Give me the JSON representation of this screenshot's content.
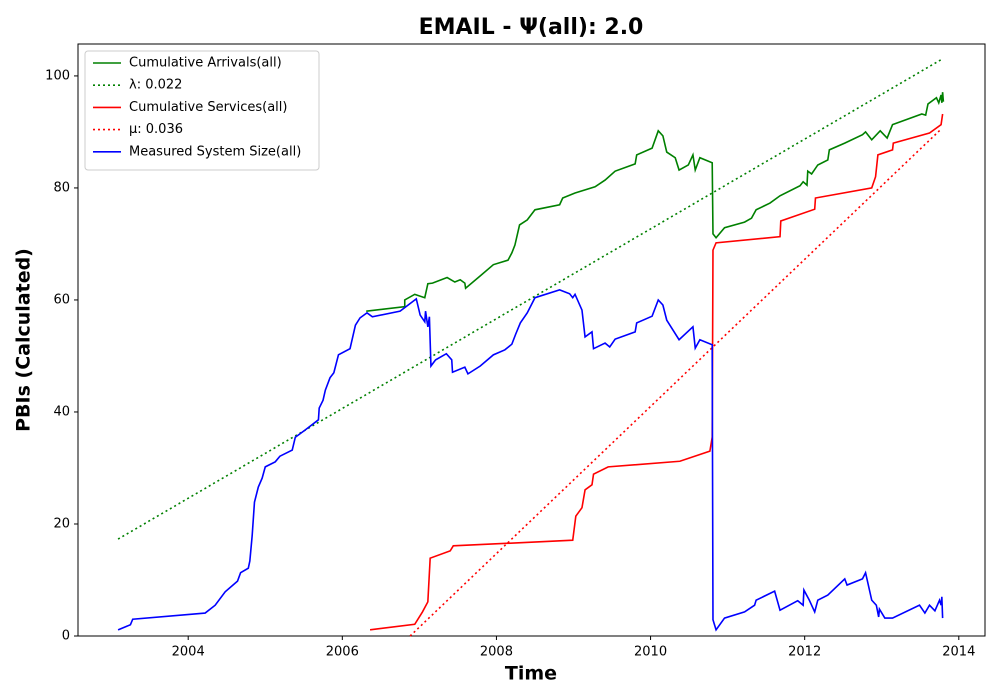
{
  "chart_data": {
    "type": "line",
    "title": "EMAIL -  Ψ(all): 2.0",
    "xlabel": "Time",
    "ylabel": "PBIs (Calculated)",
    "xlim": [
      2002.57,
      2014.34
    ],
    "ylim": [
      0,
      105.7
    ],
    "xticks": [
      2004,
      2006,
      2008,
      2010,
      2012,
      2014
    ],
    "yticks": [
      0,
      20,
      40,
      60,
      80,
      100
    ],
    "legend": "upper left",
    "grid": false,
    "series": [
      {
        "name": "Cumulative Arrivals(all)",
        "color": "#008000",
        "dash": "solid",
        "x": [
          2006.31,
          2006.81,
          2006.81,
          2006.94,
          2007.07,
          2007.11,
          2007.17,
          2007.36,
          2007.46,
          2007.53,
          2007.59,
          2007.6,
          2007.79,
          2007.96,
          2008.15,
          2008.2,
          2008.24,
          2008.3,
          2008.4,
          2008.5,
          2008.82,
          2008.86,
          2009.02,
          2009.28,
          2009.41,
          2009.54,
          2009.8,
          2009.82,
          2010.02,
          2010.1,
          2010.16,
          2010.21,
          2010.32,
          2010.37,
          2010.49,
          2010.55,
          2010.58,
          2010.64,
          2010.8,
          2010.81,
          2010.85,
          2010.96,
          2011.22,
          2011.31,
          2011.37,
          2011.55,
          2011.68,
          2011.94,
          2011.98,
          2012.03,
          2012.04,
          2012.09,
          2012.17,
          2012.3,
          2012.32,
          2012.52,
          2012.75,
          2012.79,
          2012.87,
          2012.98,
          2013.07,
          2013.14,
          2013.52,
          2013.57,
          2013.6,
          2013.71,
          2013.74,
          2013.77,
          2013.78,
          2013.79,
          2013.8
        ],
        "values": [
          58,
          58.8,
          60,
          61,
          60.4,
          62.9,
          63,
          64,
          63.2,
          63.6,
          63,
          62.1,
          64.3,
          66.3,
          67.1,
          68.4,
          69.8,
          73.4,
          74.3,
          76.1,
          77,
          78.2,
          79.1,
          80.2,
          81.4,
          83,
          84.3,
          85.9,
          87.1,
          90.2,
          89.3,
          86.4,
          85.4,
          83.2,
          84.1,
          85.9,
          83.2,
          85.4,
          84.5,
          71.8,
          71.1,
          72.9,
          73.9,
          74.6,
          76.1,
          77.3,
          78.6,
          80.4,
          81.1,
          80.5,
          83,
          82.5,
          84.1,
          85,
          86.8,
          88,
          89.5,
          90,
          88.6,
          90.2,
          88.9,
          91.3,
          93.2,
          93,
          95,
          96.1,
          95.2,
          96.6,
          95.2,
          97.1,
          95.4
        ]
      },
      {
        "name": "λ: 0.022",
        "color": "#008000",
        "dash": "dotted",
        "x": [
          2003.09,
          2013.77
        ],
        "values": [
          17.3,
          102.9
        ]
      },
      {
        "name": "Cumulative Services(all)",
        "color": "#ff0000",
        "dash": "solid",
        "x": [
          2006.36,
          2006.94,
          2007.04,
          2007.11,
          2007.14,
          2007.4,
          2007.44,
          2008.99,
          2009.03,
          2009.11,
          2009.15,
          2009.24,
          2009.26,
          2009.45,
          2010.38,
          2010.77,
          2010.8,
          2010.81,
          2010.85,
          2011.68,
          2011.69,
          2012.13,
          2012.14,
          2012.87,
          2012.92,
          2012.95,
          2013.14,
          2013.15,
          2013.62,
          2013.77,
          2013.79
        ],
        "values": [
          1.1,
          2.1,
          4.3,
          6.1,
          13.9,
          15.2,
          16.1,
          17.1,
          21.4,
          22.9,
          26.1,
          27,
          28.9,
          30.2,
          31.2,
          33,
          35.5,
          68.9,
          70.2,
          71.3,
          74.1,
          76.2,
          78.2,
          80,
          82,
          85.9,
          86.8,
          88,
          89.8,
          91.3,
          93.2
        ]
      },
      {
        "name": "μ: 0.036",
        "color": "#ff0000",
        "dash": "dotted",
        "x": [
          2006.88,
          2013.77
        ],
        "values": [
          0,
          90.5
        ]
      },
      {
        "name": "Measured System Size(all)",
        "color": "#0000ff",
        "dash": "solid",
        "x": [
          2003.09,
          2003.25,
          2003.28,
          2004.22,
          2004.35,
          2004.48,
          2004.64,
          2004.68,
          2004.78,
          2004.8,
          2004.83,
          2004.86,
          2004.91,
          2004.96,
          2005,
          2005.13,
          2005.19,
          2005.35,
          2005.39,
          2005.52,
          2005.69,
          2005.7,
          2005.75,
          2005.78,
          2005.84,
          2005.89,
          2005.95,
          2006.1,
          2006.17,
          2006.23,
          2006.32,
          2006.39,
          2006.75,
          2006.96,
          2007.01,
          2007.07,
          2007.08,
          2007.11,
          2007.13,
          2007.15,
          2007.21,
          2007.35,
          2007.42,
          2007.43,
          2007.59,
          2007.63,
          2007.79,
          2007.96,
          2008.11,
          2008.2,
          2008.25,
          2008.31,
          2008.4,
          2008.5,
          2008.82,
          2008.95,
          2008.99,
          2009.02,
          2009.11,
          2009.15,
          2009.24,
          2009.26,
          2009.41,
          2009.47,
          2009.54,
          2009.8,
          2009.82,
          2010.02,
          2010.1,
          2010.16,
          2010.21,
          2010.37,
          2010.55,
          2010.58,
          2010.64,
          2010.8,
          2010.8,
          2010.81,
          2010.85,
          2010.96,
          2011.22,
          2011.35,
          2011.37,
          2011.61,
          2011.68,
          2011.91,
          2011.98,
          2011.99,
          2012.06,
          2012.13,
          2012.17,
          2012.3,
          2012.52,
          2012.55,
          2012.75,
          2012.79,
          2012.87,
          2012.93,
          2012.96,
          2012.97,
          2013.04,
          2013.14,
          2013.49,
          2013.56,
          2013.62,
          2013.69,
          2013.75,
          2013.77,
          2013.78,
          2013.79
        ],
        "values": [
          1.1,
          2,
          3,
          4.1,
          5.5,
          7.9,
          9.8,
          11.3,
          12.1,
          13.4,
          17.9,
          23.9,
          26.6,
          28.2,
          30.2,
          31.1,
          32.1,
          33.2,
          35.5,
          36.8,
          38.6,
          40.7,
          42.1,
          43.9,
          46.1,
          47,
          50.2,
          51.3,
          55.5,
          56.8,
          57.7,
          57,
          58,
          60.2,
          57.3,
          56.1,
          58,
          55.2,
          57,
          48.2,
          49.3,
          50.4,
          49.3,
          47.1,
          48,
          46.8,
          48.2,
          50.2,
          51.1,
          52.1,
          53.9,
          55.9,
          57.7,
          60.4,
          61.8,
          61.1,
          60.4,
          61,
          58.2,
          53.4,
          54.3,
          51.3,
          52.3,
          51.6,
          53,
          54.3,
          55.9,
          57.1,
          60,
          59.1,
          56.4,
          52.9,
          55.2,
          51.4,
          52.9,
          52,
          50.2,
          2.9,
          1.1,
          3.2,
          4.3,
          5.5,
          6.4,
          8,
          4.6,
          6.3,
          5.5,
          8.2,
          6.4,
          4.3,
          6.4,
          7.3,
          10.2,
          9.1,
          10.2,
          11.3,
          6.4,
          5.5,
          3.4,
          4.8,
          3.2,
          3.2,
          5.5,
          4.1,
          5.5,
          4.5,
          6.4,
          5.5,
          7,
          3.2
        ]
      }
    ]
  }
}
